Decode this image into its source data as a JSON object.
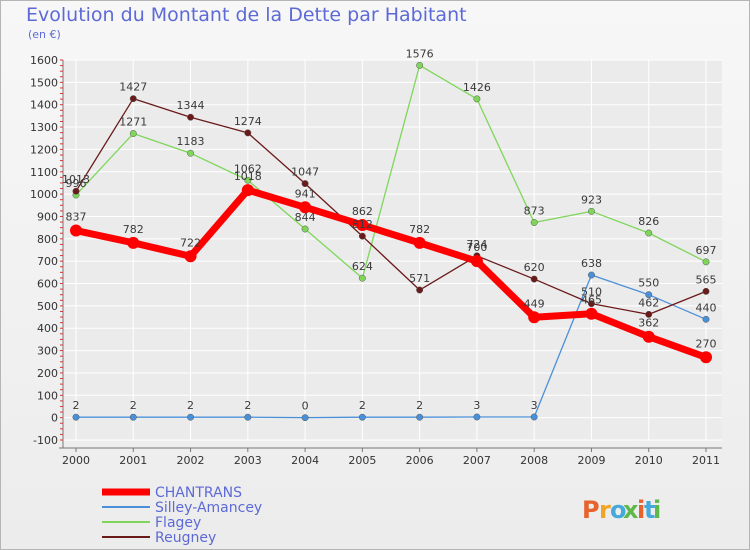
{
  "title": "Evolution du Montant de la Dette par Habitant",
  "subtitle": "(en €)",
  "brand": "Proxiti",
  "brand_colors": [
    "#e7622c",
    "#f2a425",
    "#46a9dc",
    "#5fb84a",
    "#e7622c",
    "#46a9dc",
    "#5fb84a"
  ],
  "chart_data": {
    "type": "line",
    "x": [
      "2000",
      "2001",
      "2002",
      "2003",
      "2004",
      "2005",
      "2006",
      "2007",
      "2008",
      "2009",
      "2010",
      "2011"
    ],
    "ylim": [
      -100,
      1600
    ],
    "yticks": [
      -100,
      0,
      100,
      200,
      300,
      400,
      500,
      600,
      700,
      800,
      900,
      1000,
      1100,
      1200,
      1300,
      1400,
      1500,
      1600
    ],
    "grid": true,
    "legend": "bottom-left",
    "series": [
      {
        "name": "CHANTRANS",
        "color": "#ff0000",
        "values": [
          837,
          782,
          722,
          1018,
          941,
          862,
          782,
          700,
          449,
          465,
          362,
          270
        ]
      },
      {
        "name": "Silley-Amancey",
        "color": "#4a90d9",
        "values": [
          2,
          2,
          2,
          2,
          0,
          2,
          2,
          3,
          3,
          638,
          550,
          440
        ]
      },
      {
        "name": "Flagey",
        "color": "#7fd65a",
        "values": [
          996,
          1271,
          1183,
          1062,
          844,
          624,
          1576,
          1426,
          873,
          923,
          826,
          697
        ]
      },
      {
        "name": "Reugney",
        "color": "#6b1a1a",
        "values": [
          1013,
          1427,
          1344,
          1274,
          1047,
          812,
          571,
          724,
          620,
          510,
          462,
          565
        ]
      }
    ]
  }
}
